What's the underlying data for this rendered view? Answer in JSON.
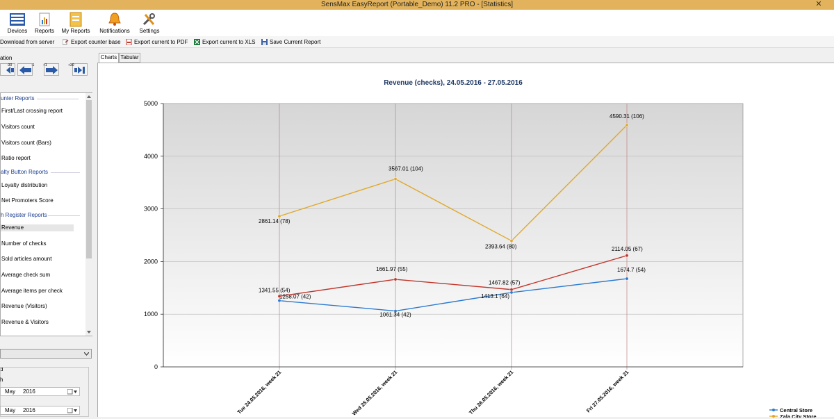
{
  "window": {
    "title": "SensMax EasyReport (Portable_Demo) 11.2 PRO - [Statistics]",
    "close_glyph": "✕"
  },
  "ribbon": [
    {
      "label": "Devices",
      "icon": "devices-icon"
    },
    {
      "label": "Reports",
      "icon": "reports-icon"
    },
    {
      "label": "My Reports",
      "icon": "my-reports-icon"
    },
    {
      "label": "Notifications",
      "icon": "notifications-icon"
    },
    {
      "label": "Settings",
      "icon": "settings-icon"
    }
  ],
  "toolbar": [
    {
      "label": "Download from server",
      "icon": "download-icon"
    },
    {
      "label": "Export counter base",
      "icon": "export-icon"
    },
    {
      "label": "Export current to PDF",
      "icon": "pdf-icon"
    },
    {
      "label": "Export current to XLS",
      "icon": "xls-icon"
    },
    {
      "label": "Save Current Report",
      "icon": "save-icon"
    }
  ],
  "navigation": {
    "label": "ation",
    "buttons": [
      {
        "sup": "-30",
        "icon": "jump-back-icon"
      },
      {
        "sup": "-1",
        "icon": "arrow-left-icon"
      },
      {
        "sup": "+1",
        "icon": "arrow-right-icon"
      },
      {
        "sup": "+30",
        "icon": "jump-forward-icon"
      }
    ]
  },
  "reports": {
    "sections": [
      {
        "title": "unter Reports"
      },
      {
        "title": "alty Button Reports"
      },
      {
        "title": "h Register Reports"
      }
    ],
    "items": [
      "First/Last crossing report",
      "Visitors count",
      "Visitors count (Bars)",
      "Ratio report",
      "Loyalty distribution",
      "Net Promoters Score",
      "Revenue",
      "Number of checks",
      "Sold articles amount",
      "Average check sum",
      "Average items per check",
      "Revenue (Visitors)",
      "Revenue & Visitors"
    ],
    "selected": "Revenue"
  },
  "period": {
    "label1": "d",
    "label2": "h",
    "from": {
      "month": "May",
      "year": "2016"
    },
    "to": {
      "month": "May",
      "year": "2016"
    }
  },
  "tabs": [
    {
      "label": "Charts"
    },
    {
      "label": "Tabular"
    }
  ],
  "colors": {
    "central": "#2b7ad0",
    "zala": "#e0a82a",
    "third": "#c0362c",
    "vgrid": "#c08080",
    "title": "#1f3864"
  },
  "chart_data": {
    "type": "line",
    "title": "Revenue (checks), 24.05.2016 - 27.05.2016",
    "categories": [
      "Tue 24.05.2016, week 21",
      "Wed 25.05.2016, week 21",
      "Thu 26.05.2016, week 21",
      "Fri 27.05.2016, week 21"
    ],
    "ylim": [
      0,
      5000
    ],
    "yticks": [
      "0",
      "1000",
      "2000",
      "3000",
      "4000",
      "5000"
    ],
    "grid": true,
    "legend_position": "bottom-right",
    "series": [
      {
        "name": "Central Store",
        "values": [
          1258.07,
          1061.34,
          1413.1,
          1674.7
        ],
        "labels": [
          "1258.07 (42)",
          "1061.34 (42)",
          "1413.1 (64)",
          "1674.7 (54)"
        ]
      },
      {
        "name": "Zala City Store",
        "values": [
          2861.14,
          3567.01,
          2393.64,
          4590.31
        ],
        "labels": [
          "2861.14 (78)",
          "3567.01 (104)",
          "2393.64 (80)",
          "4590.31 (106)"
        ]
      },
      {
        "values": [
          1341.55,
          1661.97,
          1467.82,
          2114.05
        ],
        "labels": [
          "1341.55 (54)",
          "1661.97 (55)",
          "1467.82 (57)",
          "2114.05 (67)"
        ]
      }
    ]
  }
}
